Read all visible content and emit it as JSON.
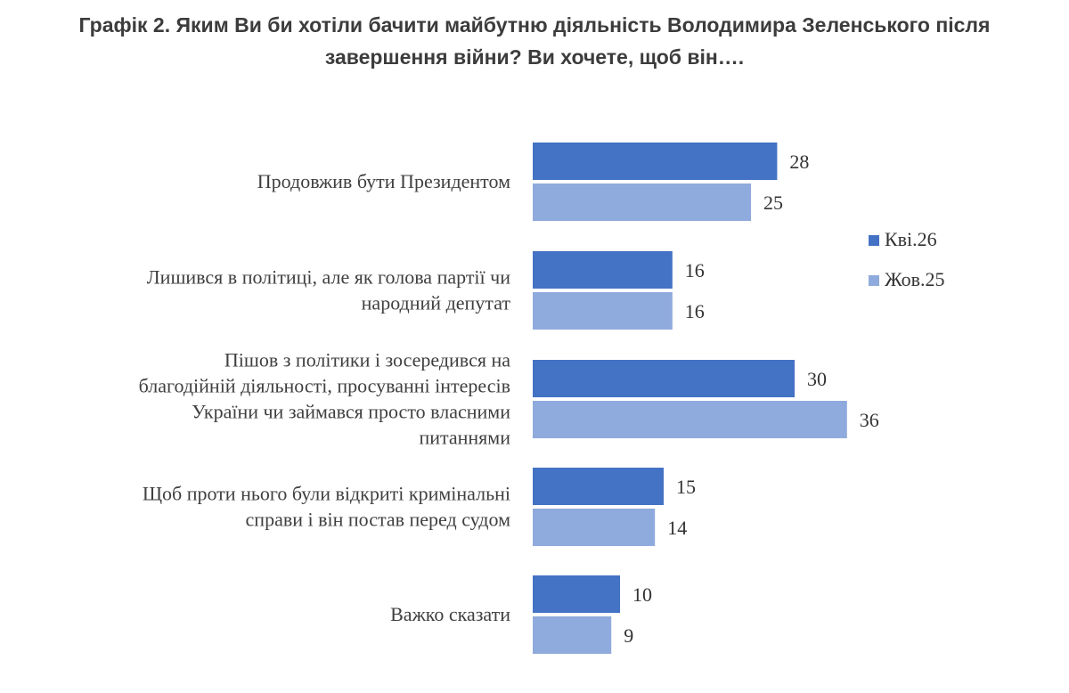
{
  "title_line1": "Графік 2. Яким Ви би хотіли бачити майбутню діяльність Володимира Зеленського після",
  "title_line2": "завершення війни? Ви хочете, щоб він….",
  "chart_data": {
    "type": "bar",
    "orientation": "horizontal",
    "title": "Графік 2. Яким Ви би хотіли бачити майбутню діяльність Володимира Зеленського після завершення війни? Ви хочете, щоб він….",
    "categories": [
      [
        "Продовжив бути Президентом"
      ],
      [
        "Лишився в політиці, але як голова партії чи",
        "народний депутат"
      ],
      [
        "Пішов з політики і зосередився на",
        "благодійній діяльності, просуванні інтересів",
        "України чи займався просто власними",
        "питаннями"
      ],
      [
        "Щоб проти нього були відкриті кримінальні",
        "справи і він постав перед судом"
      ],
      [
        "Важко сказати"
      ]
    ],
    "series": [
      {
        "name": "Кві.26",
        "color": "#4472c4",
        "values": [
          28,
          16,
          30,
          15,
          10
        ]
      },
      {
        "name": "Жов.25",
        "color": "#8faadc",
        "values": [
          25,
          16,
          36,
          14,
          9
        ]
      }
    ],
    "legend_position": "right",
    "grid": false,
    "xlim": [
      0,
      40
    ]
  }
}
